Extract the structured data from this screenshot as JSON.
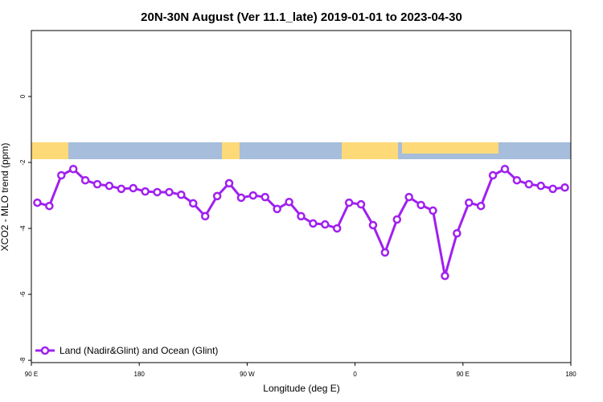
{
  "chart_data": {
    "type": "line",
    "title": "20N-30N August (Ver 11.1_late)   2019-01-01 to 2023-04-30",
    "x_label": "Longitude (deg E)",
    "y_label": "XCO2 - MLO trend (ppm)",
    "x": [
      95,
      105,
      115,
      125,
      135,
      145,
      155,
      165,
      175,
      185,
      195,
      205,
      215,
      225,
      235,
      245,
      255,
      265,
      275,
      285,
      295,
      305,
      315,
      325,
      335,
      345,
      355,
      365,
      375,
      385,
      395,
      405,
      415,
      425,
      435,
      445,
      455,
      465,
      475,
      485,
      495,
      505,
      515,
      525,
      535
    ],
    "series": [
      {
        "name": "Land (Nadir&Glint) and Ocean (Glint)",
        "color": "#a020f0",
        "values": [
          -3.22,
          -3.32,
          -2.39,
          -2.2,
          -2.54,
          -2.66,
          -2.71,
          -2.8,
          -2.78,
          -2.88,
          -2.9,
          -2.9,
          -2.98,
          -3.24,
          -3.63,
          -3.02,
          -2.63,
          -3.07,
          -3,
          -3.05,
          -3.41,
          -3.2,
          -3.63,
          -3.85,
          -3.88,
          -4,
          -3.22,
          -3.27,
          -3.9,
          -4.73,
          -3.73,
          -3.05,
          -3.29,
          -3.46,
          -5.44,
          -4.15,
          -3.22,
          -3.32,
          -2.39,
          -2.2,
          -2.54,
          -2.66,
          -2.71,
          -2.8,
          -2.76
        ]
      }
    ],
    "xlim": [
      90,
      540
    ],
    "xticks": [
      {
        "value": 90,
        "label": "90 E"
      },
      180,
      {
        "value": 270,
        "label": "90 W"
      },
      {
        "value": 360,
        "label": "0"
      },
      {
        "value": 450,
        "label": "90 E"
      },
      {
        "value": 540,
        "label": "180"
      }
    ],
    "ylim": [
      -8.07,
      2
    ],
    "yticks": [
      0,
      -2,
      -4,
      -6,
      -8
    ],
    "legend": "bottom-left"
  }
}
